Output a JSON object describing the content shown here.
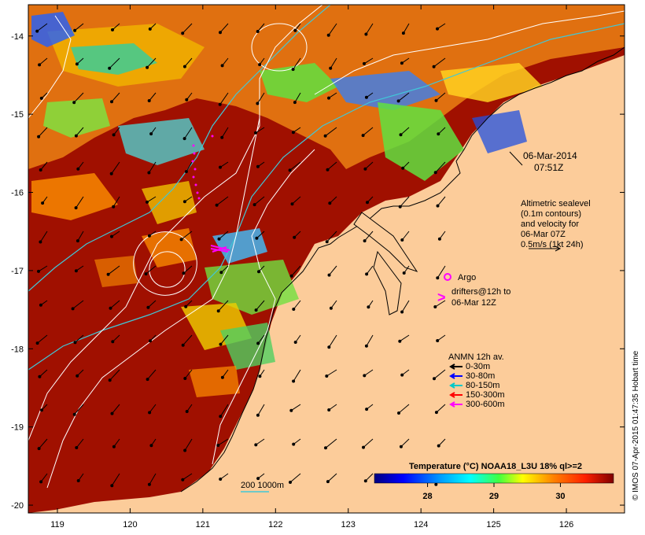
{
  "map": {
    "lon_ticks": [
      "119",
      "120",
      "121",
      "122",
      "123",
      "124",
      "125",
      "126"
    ],
    "lat_ticks": [
      "-14",
      "-15",
      "-16",
      "-17",
      "-18",
      "-19",
      "-20"
    ],
    "lon_range": [
      118.6,
      126.8
    ],
    "lat_range": [
      -20.1,
      -13.6
    ]
  },
  "annotations": {
    "date": "06-Mar-2014",
    "time": "07:51Z",
    "altimetry": [
      "Altimetric sealevel",
      "(0.1m contours)",
      "and velocity for",
      "06-Mar 07Z",
      "0.5m/s (1kt 24h)"
    ],
    "argo_label": "Argo",
    "drifters_label": [
      "drifters@12h to",
      "06-Mar 12Z"
    ],
    "scale_label": "200  1000m"
  },
  "anmn_legend": {
    "title": "ANMN 12h av.",
    "items": [
      {
        "label": "0-30m",
        "color": "#000000"
      },
      {
        "label": "30-80m",
        "color": "#0000ff"
      },
      {
        "label": "80-150m",
        "color": "#00c8c8"
      },
      {
        "label": "150-300m",
        "color": "#ff0000"
      },
      {
        "label": "300-600m",
        "color": "#ff00ff"
      }
    ]
  },
  "colorbar": {
    "title": "Temperature (°C) NOAA18_L3U 18% ql>=2",
    "ticks": [
      "28",
      "29",
      "30"
    ],
    "range": [
      27.2,
      30.8
    ]
  },
  "credit": "© IMOS 07-Apr-2015 01:47:35 Hobart time",
  "colors": {
    "land": "#fccc9a",
    "warm_water": "#a01000",
    "contour": "#ffffff",
    "isobath": "#40c8d8"
  }
}
